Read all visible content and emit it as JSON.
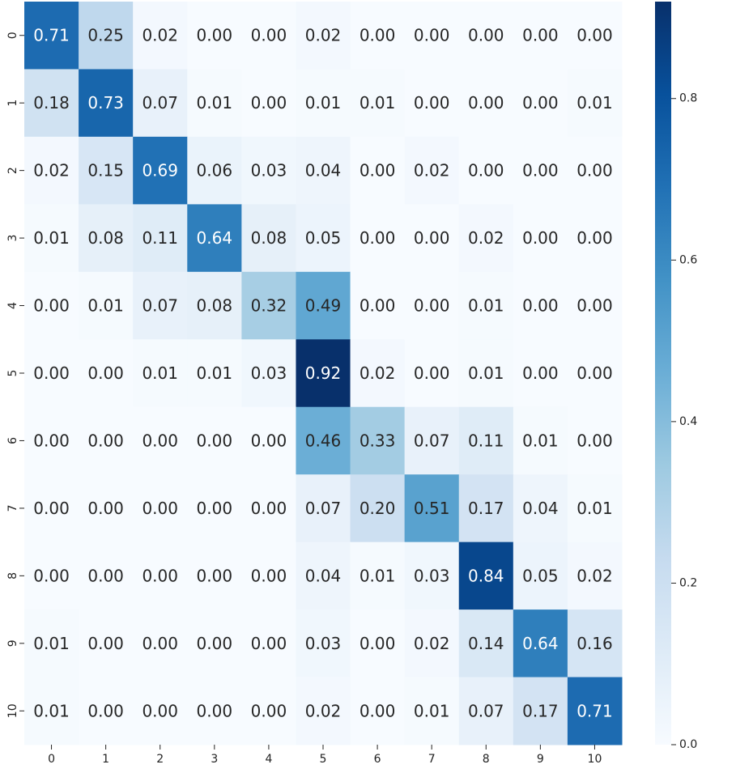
{
  "chart_data": {
    "type": "heatmap",
    "title": "",
    "xlabel": "",
    "ylabel": "",
    "x_categories": [
      "0",
      "1",
      "2",
      "3",
      "4",
      "5",
      "6",
      "7",
      "8",
      "9",
      "10"
    ],
    "y_categories": [
      "0",
      "1",
      "2",
      "3",
      "4",
      "5",
      "6",
      "7",
      "8",
      "9",
      "10"
    ],
    "values": [
      [
        0.71,
        0.25,
        0.02,
        0.0,
        0.0,
        0.02,
        0.0,
        0.0,
        0.0,
        0.0,
        0.0
      ],
      [
        0.18,
        0.73,
        0.07,
        0.01,
        0.0,
        0.01,
        0.01,
        0.0,
        0.0,
        0.0,
        0.01
      ],
      [
        0.02,
        0.15,
        0.69,
        0.06,
        0.03,
        0.04,
        0.0,
        0.02,
        0.0,
        0.0,
        0.0
      ],
      [
        0.01,
        0.08,
        0.11,
        0.64,
        0.08,
        0.05,
        0.0,
        0.0,
        0.02,
        0.0,
        0.0
      ],
      [
        0.0,
        0.01,
        0.07,
        0.08,
        0.32,
        0.49,
        0.0,
        0.0,
        0.01,
        0.0,
        0.0
      ],
      [
        0.0,
        0.0,
        0.01,
        0.01,
        0.03,
        0.92,
        0.02,
        0.0,
        0.01,
        0.0,
        0.0
      ],
      [
        0.0,
        0.0,
        0.0,
        0.0,
        0.0,
        0.46,
        0.33,
        0.07,
        0.11,
        0.01,
        0.0
      ],
      [
        0.0,
        0.0,
        0.0,
        0.0,
        0.0,
        0.07,
        0.2,
        0.51,
        0.17,
        0.04,
        0.01
      ],
      [
        0.0,
        0.0,
        0.0,
        0.0,
        0.0,
        0.04,
        0.01,
        0.03,
        0.84,
        0.05,
        0.02
      ],
      [
        0.01,
        0.0,
        0.0,
        0.0,
        0.0,
        0.03,
        0.0,
        0.02,
        0.14,
        0.64,
        0.16
      ],
      [
        0.01,
        0.0,
        0.0,
        0.0,
        0.0,
        0.02,
        0.0,
        0.01,
        0.07,
        0.17,
        0.71
      ]
    ],
    "annotation_format": "0.00",
    "colormap": "Blues",
    "colorbar": {
      "range": [
        0.0,
        0.92
      ],
      "ticks": [
        0.0,
        0.2,
        0.4,
        0.6,
        0.8
      ],
      "tick_labels": [
        "0.0",
        "0.2",
        "0.4",
        "0.6",
        "0.8"
      ],
      "placement": "right"
    },
    "grid": false
  }
}
